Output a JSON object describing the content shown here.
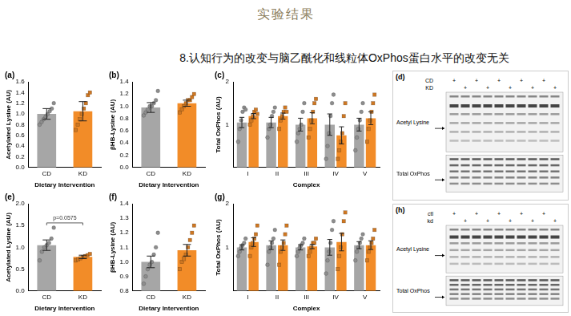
{
  "header": {
    "title": "实验结果",
    "subtitle": "8.认知行为的改变与脑乙酰化和线粒体OxPhos蛋白水平的改变无关"
  },
  "chart_data": [
    {
      "panel": "(a)",
      "type": "bar",
      "y_label": "Acetylated Lysine (AU)",
      "x_label": "Dietary Intervention",
      "categories": [
        "CD",
        "KD"
      ],
      "grid": false,
      "ylim": [
        0,
        1.6
      ],
      "yticks": [
        {
          "value": 0,
          "label": "0.0"
        },
        {
          "value": 0.2,
          "label": "0.2"
        },
        {
          "value": 0.4,
          "label": "0.4"
        },
        {
          "value": 0.6,
          "label": "0.6"
        },
        {
          "value": 0.8,
          "label": "0.8"
        },
        {
          "value": 1,
          "label": "1.0"
        },
        {
          "value": 1.2,
          "label": "1.2"
        },
        {
          "value": 1.4,
          "label": "1.4"
        },
        {
          "value": 1.6,
          "label": "1.6"
        }
      ],
      "series": [
        {
          "name": "CD",
          "color": "#a6a6a6",
          "marker": "circle",
          "values": [
            1.0,
            null
          ],
          "errors": [
            0.1,
            null
          ],
          "points": [
            [
              0.8,
              0.85,
              0.9,
              0.95,
              1.0,
              1.05,
              1.1,
              1.2
            ],
            null
          ]
        },
        {
          "name": "KD",
          "color": "#f28c28",
          "marker": "square",
          "values": [
            null,
            1.05
          ],
          "errors": [
            null,
            0.18
          ],
          "points": [
            null,
            [
              0.7,
              0.8,
              0.9,
              1.0,
              1.1,
              1.2,
              1.35,
              1.4
            ]
          ]
        }
      ]
    },
    {
      "panel": "(b)",
      "type": "bar",
      "y_label": "βHB-Lysine (AU)",
      "x_label": "Dietary Intervention",
      "categories": [
        "CD",
        "KD"
      ],
      "grid": false,
      "ylim": [
        0,
        1.4
      ],
      "yticks": [
        {
          "value": 0,
          "label": "0.0"
        },
        {
          "value": 0.2,
          "label": "0.2"
        },
        {
          "value": 0.4,
          "label": "0.4"
        },
        {
          "value": 0.6,
          "label": "0.6"
        },
        {
          "value": 0.8,
          "label": "0.8"
        },
        {
          "value": 1,
          "label": "1.0"
        },
        {
          "value": 1.2,
          "label": "1.2"
        },
        {
          "value": 1.4,
          "label": "1.4"
        }
      ],
      "series": [
        {
          "name": "CD",
          "color": "#a6a6a6",
          "marker": "circle",
          "values": [
            0.98,
            null
          ],
          "errors": [
            0.08,
            null
          ],
          "points": [
            [
              0.85,
              0.9,
              0.95,
              1.0,
              1.0,
              1.05,
              1.1,
              1.25
            ],
            null
          ]
        },
        {
          "name": "KD",
          "color": "#f28c28",
          "marker": "square",
          "values": [
            null,
            1.05
          ],
          "errors": [
            null,
            0.05
          ],
          "points": [
            null,
            [
              0.9,
              0.95,
              1.0,
              1.05,
              1.1,
              1.1,
              1.15,
              1.2
            ]
          ]
        }
      ]
    },
    {
      "panel": "(c)",
      "type": "bar",
      "y_label": "Total OxPhos (AU)",
      "x_label": "Complex",
      "categories": [
        "I",
        "II",
        "III",
        "IV",
        "V"
      ],
      "grid": false,
      "ylim": [
        0,
        2
      ],
      "yticks": [
        0,
        1,
        2
      ],
      "series": [
        {
          "name": "CD",
          "color": "#a6a6a6",
          "marker": "circle",
          "values": [
            1.05,
            1.05,
            1.0,
            1.0,
            1.0
          ],
          "errors": [
            0.12,
            0.12,
            0.15,
            0.25,
            0.15
          ],
          "points": [
            [
              0.6,
              0.9,
              1.1,
              1.3,
              1.4,
              1.35
            ],
            [
              0.7,
              0.9,
              1.0,
              1.2,
              1.3,
              1.4
            ],
            [
              0.6,
              0.8,
              0.9,
              1.0,
              1.3,
              1.5
            ],
            [
              0.2,
              0.5,
              0.8,
              1.2,
              1.5,
              1.7
            ],
            [
              0.4,
              0.7,
              0.9,
              1.1,
              1.3,
              1.5
            ]
          ]
        },
        {
          "name": "KD",
          "color": "#f28c28",
          "marker": "square",
          "values": [
            1.2,
            1.2,
            1.15,
            0.75,
            1.15
          ],
          "errors": [
            0.06,
            0.07,
            0.13,
            0.2,
            0.15
          ],
          "points": [
            [
              1.0,
              1.1,
              1.2,
              1.3,
              1.35,
              1.25
            ],
            [
              0.9,
              1.1,
              1.2,
              1.3,
              1.4,
              1.3
            ],
            [
              0.7,
              0.9,
              1.1,
              1.3,
              1.5,
              1.6
            ],
            [
              0.2,
              0.4,
              0.6,
              0.8,
              1.2,
              1.5
            ],
            [
              0.6,
              0.9,
              1.1,
              1.3,
              1.5,
              1.7
            ]
          ]
        }
      ]
    },
    {
      "panel": "(e)",
      "type": "bar",
      "y_label": "Acetylated Lysine (AU)",
      "x_label": "Dietary Intervention",
      "categories": [
        "CD",
        "KD"
      ],
      "grid": false,
      "ylim": [
        0,
        2
      ],
      "yticks": [
        {
          "value": 0,
          "label": "0.0"
        },
        {
          "value": 0.5,
          "label": "0.5"
        },
        {
          "value": 1,
          "label": "1.0"
        },
        {
          "value": 1.5,
          "label": "1.5"
        },
        {
          "value": 2,
          "label": "2.0"
        }
      ],
      "annotations": [
        {
          "text": "p=0.0575",
          "between": [
            "CD",
            "KD"
          ]
        }
      ],
      "series": [
        {
          "name": "CD",
          "color": "#a6a6a6",
          "marker": "circle",
          "values": [
            1.05,
            null
          ],
          "errors": [
            0.12,
            null
          ],
          "points": [
            [
              0.7,
              0.9,
              1.0,
              1.05,
              1.1,
              1.2,
              1.45
            ],
            null
          ]
        },
        {
          "name": "KD",
          "color": "#f28c28",
          "marker": "square",
          "values": [
            null,
            0.78
          ],
          "errors": [
            null,
            0.04
          ],
          "points": [
            null,
            [
              0.7,
              0.72,
              0.75,
              0.78,
              0.8,
              0.82,
              0.85
            ]
          ]
        }
      ]
    },
    {
      "panel": "(f)",
      "type": "bar",
      "y_label": "βHB-Lysine (AU)",
      "x_label": "Dietary Intervention",
      "categories": [
        "CD",
        "KD"
      ],
      "grid": false,
      "ylim": [
        0.8,
        1.4
      ],
      "yticks": [
        {
          "value": 0.8,
          "label": "0.8"
        },
        {
          "value": 0.9,
          "label": "0.9"
        },
        {
          "value": 1,
          "label": "1.0"
        },
        {
          "value": 1.1,
          "label": "1.1"
        },
        {
          "value": 1.2,
          "label": "1.2"
        },
        {
          "value": 1.3,
          "label": "1.3"
        },
        {
          "value": 1.4,
          "label": "1.4"
        }
      ],
      "series": [
        {
          "name": "CD",
          "color": "#a6a6a6",
          "marker": "circle",
          "values": [
            1.0,
            null
          ],
          "errors": [
            0.04,
            null
          ],
          "points": [
            [
              0.85,
              0.9,
              0.95,
              0.98,
              1.0,
              1.05,
              1.1,
              1.2
            ],
            null
          ]
        },
        {
          "name": "KD",
          "color": "#f28c28",
          "marker": "square",
          "values": [
            null,
            1.08
          ],
          "errors": [
            null,
            0.04
          ],
          "points": [
            null,
            [
              0.95,
              1.0,
              1.02,
              1.05,
              1.1,
              1.15,
              1.2,
              1.25
            ]
          ]
        }
      ]
    },
    {
      "panel": "(g)",
      "type": "bar",
      "y_label": "Total OxPhos (AU)",
      "x_label": "Complex",
      "categories": [
        "I",
        "II",
        "III",
        "IV",
        "V"
      ],
      "grid": false,
      "ylim": [
        0,
        2
      ],
      "yticks": [
        0,
        1,
        2
      ],
      "series": [
        {
          "name": "CD",
          "color": "#a6a6a6",
          "marker": "circle",
          "values": [
            1.0,
            1.05,
            1.0,
            1.0,
            1.05
          ],
          "errors": [
            0.06,
            0.1,
            0.06,
            0.18,
            0.08
          ],
          "points": [
            [
              0.8,
              0.9,
              1.0,
              1.05,
              1.1,
              1.2
            ],
            [
              0.6,
              0.9,
              1.0,
              1.1,
              1.2,
              1.4
            ],
            [
              0.8,
              0.9,
              1.0,
              1.05,
              1.1,
              1.2
            ],
            [
              0.4,
              0.7,
              0.9,
              1.1,
              1.4,
              1.6
            ],
            [
              0.7,
              0.9,
              1.0,
              1.1,
              1.2,
              1.3
            ]
          ]
        },
        {
          "name": "KD",
          "color": "#f28c28",
          "marker": "square",
          "values": [
            1.12,
            1.05,
            1.02,
            1.12,
            1.05
          ],
          "errors": [
            0.1,
            0.12,
            0.05,
            0.2,
            0.1
          ],
          "points": [
            [
              0.8,
              1.0,
              1.1,
              1.2,
              1.3,
              1.5
            ],
            [
              0.6,
              0.9,
              1.0,
              1.1,
              1.3,
              1.5
            ],
            [
              0.8,
              0.9,
              1.0,
              1.1,
              1.1,
              1.2
            ],
            [
              0.5,
              0.8,
              1.0,
              1.3,
              1.6,
              1.8
            ],
            [
              0.7,
              0.9,
              1.0,
              1.1,
              1.2,
              1.4
            ]
          ]
        }
      ]
    }
  ],
  "blots": [
    {
      "panel": "(d)",
      "rows": [
        {
          "label": "CD",
          "marks": [
            "+",
            null,
            "+",
            null,
            "+",
            null,
            "+",
            null,
            "+",
            null
          ]
        },
        {
          "label": "KD",
          "marks": [
            null,
            "+",
            null,
            "+",
            null,
            "+",
            null,
            "+",
            null,
            "+"
          ]
        }
      ],
      "bands": [
        "Acetyl Lysine",
        "Total OxPhos"
      ]
    },
    {
      "panel": "(h)",
      "rows": [
        {
          "label": "ctl",
          "marks": [
            "+",
            null,
            "+",
            null,
            "+",
            null,
            "+",
            null,
            "+",
            null
          ]
        },
        {
          "label": "kd",
          "marks": [
            null,
            "+",
            null,
            "+",
            null,
            "+",
            null,
            "+",
            null,
            "+"
          ]
        }
      ],
      "bands": [
        "Acetyl Lysine",
        "Total OxPhos"
      ]
    }
  ]
}
